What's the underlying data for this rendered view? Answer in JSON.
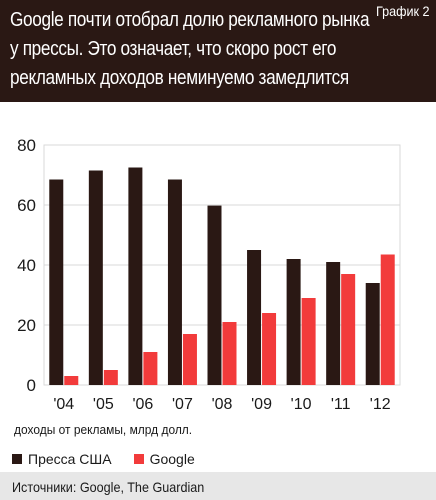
{
  "header": {
    "title": "Google почти отобрал долю рекламного рынка у прессы. Это означает, что скоро рост его рекламных доходов неминуемо замедлится",
    "chart_label": "График 2"
  },
  "x_caption": "доходы от рекламы, млрд долл.",
  "source": "Источники: Google, The Guardian",
  "colors": {
    "header_bg": "#2a1814",
    "press": "#2a1814",
    "google": "#f23b3b",
    "grid": "#d9d9d9",
    "footer_bg": "#e7e7e7"
  },
  "chart_data": {
    "type": "bar",
    "title": "Google почти отобрал долю рекламного рынка у прессы. Это означает, что скоро рост его рекламных доходов неминуемо замедлится",
    "categories": [
      "'04",
      "'05",
      "'06",
      "'07",
      "'08",
      "'09",
      "'10",
      "'11",
      "'12"
    ],
    "series": [
      {
        "name": "Пресса США",
        "values": [
          68.5,
          71.5,
          72.5,
          68.5,
          59.8,
          45,
          42,
          41,
          34
        ]
      },
      {
        "name": "Google",
        "values": [
          3,
          5,
          11,
          17,
          21,
          24,
          29,
          37,
          43.5
        ]
      }
    ],
    "xlabel": "доходы от рекламы, млрд долл.",
    "ylabel": "",
    "ylim": [
      0,
      80
    ],
    "yticks": [
      0,
      20,
      40,
      60,
      80
    ],
    "grid": true,
    "legend": "bottom-left"
  }
}
